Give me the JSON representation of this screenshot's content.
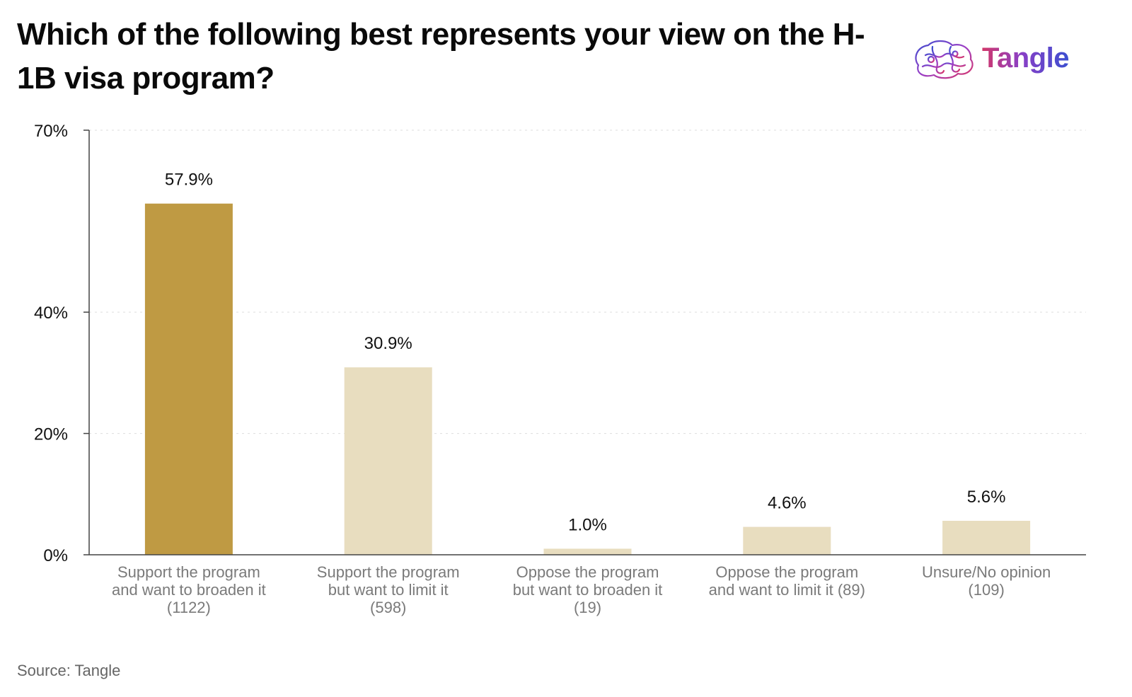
{
  "title": "Which of the following best represents your view on the H-1B visa program?",
  "logo": {
    "text": "Tangle",
    "icon": "brain-icon"
  },
  "source": "Source: Tangle",
  "colors": {
    "highlight": "#BF9A43",
    "bar": "#E8DDBF",
    "axis": "#444444",
    "grid": "#dddddd"
  },
  "chart_data": {
    "type": "bar",
    "categories": [
      [
        "Support the program",
        "and want to broaden it",
        "(1122)"
      ],
      [
        "Support the program",
        "but want to limit it",
        "(598)"
      ],
      [
        "Oppose the program",
        "but want to broaden it",
        "(19)"
      ],
      [
        "Oppose the program",
        "and want to limit it (89)"
      ],
      [
        "Unsure/No opinion",
        "(109)"
      ]
    ],
    "values": [
      57.9,
      30.9,
      1.0,
      4.6,
      5.6
    ],
    "value_labels": [
      "57.9%",
      "30.9%",
      "1.0%",
      "4.6%",
      "5.6%"
    ],
    "highlight_index": 0,
    "y_ticks": [
      0,
      20,
      40,
      70
    ],
    "y_tick_labels": [
      "0%",
      "20%",
      "40%",
      "70%"
    ],
    "ylim": [
      0,
      70
    ],
    "grid": true,
    "legend": "none"
  }
}
